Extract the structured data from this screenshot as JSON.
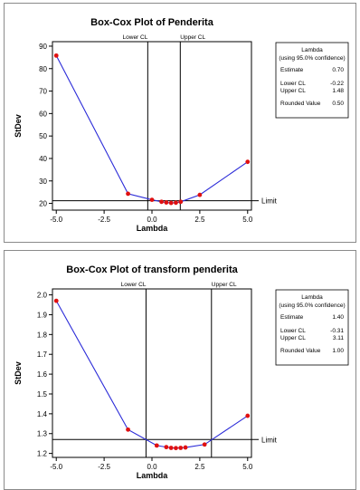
{
  "chart_data": [
    {
      "type": "line",
      "title": "Box-Cox Plot of Penderita",
      "xlabel": "Lambda",
      "ylabel": "StDev",
      "xlim": [
        -5.2,
        5.2
      ],
      "ylim": [
        17,
        92
      ],
      "xticks": [
        -5.0,
        -2.5,
        0.0,
        2.5,
        5.0
      ],
      "xtick_labels": [
        "-5.0",
        "-2.5",
        "0.0",
        "2.5",
        "5.0"
      ],
      "yticks": [
        20,
        30,
        40,
        50,
        60,
        70,
        80,
        90
      ],
      "ytick_labels": [
        "20",
        "30",
        "40",
        "50",
        "60",
        "70",
        "80",
        "90"
      ],
      "x": [
        -5.0,
        -1.25,
        0.0,
        0.5,
        0.75,
        1.0,
        1.25,
        1.5,
        2.5,
        5.0
      ],
      "y": [
        85.8,
        24.3,
        21.6,
        20.7,
        20.4,
        20.2,
        20.3,
        20.7,
        23.8,
        38.5
      ],
      "lower_cl": -0.22,
      "upper_cl": 1.48,
      "limit": 21.2,
      "cl_labels": {
        "lower": "Lower CL",
        "upper": "Upper CL"
      },
      "limit_label": "Limit",
      "legend": {
        "title": "Lambda",
        "subtitle": "(using 95.0% confidence)",
        "rows": [
          {
            "label": "Estimate",
            "value": "0.70"
          },
          {
            "label": "Lower CL",
            "value": "-0.22"
          },
          {
            "label": "Upper CL",
            "value": "1.48"
          },
          {
            "label": "Rounded Value",
            "value": "0.50"
          }
        ]
      },
      "colors": {
        "line": "#2b2bd8",
        "point": "#e01010"
      }
    },
    {
      "type": "line",
      "title": "Box-Cox Plot of transform penderita",
      "xlabel": "Lambda",
      "ylabel": "StDev",
      "xlim": [
        -5.2,
        5.2
      ],
      "ylim": [
        1.18,
        2.03
      ],
      "xticks": [
        -5.0,
        -2.5,
        0.0,
        2.5,
        5.0
      ],
      "xtick_labels": [
        "-5.0",
        "-2.5",
        "0.0",
        "2.5",
        "5.0"
      ],
      "yticks": [
        1.2,
        1.3,
        1.4,
        1.5,
        1.6,
        1.7,
        1.8,
        1.9,
        2.0
      ],
      "ytick_labels": [
        "1.2",
        "1.3",
        "1.4",
        "1.5",
        "1.6",
        "1.7",
        "1.8",
        "1.9",
        "2.0"
      ],
      "x": [
        -5.0,
        -1.25,
        0.25,
        0.75,
        1.0,
        1.25,
        1.5,
        1.75,
        2.75,
        5.0
      ],
      "y": [
        1.97,
        1.32,
        1.24,
        1.232,
        1.228,
        1.227,
        1.228,
        1.23,
        1.245,
        1.39
      ],
      "lower_cl": -0.31,
      "upper_cl": 3.11,
      "limit": 1.27,
      "cl_labels": {
        "lower": "Lower CL",
        "upper": "Upper CL"
      },
      "limit_label": "Limit",
      "legend": {
        "title": "Lambda",
        "subtitle": "(using 95.0% confidence)",
        "rows": [
          {
            "label": "Estimate",
            "value": "1.40"
          },
          {
            "label": "Lower CL",
            "value": "-0.31"
          },
          {
            "label": "Upper CL",
            "value": "3.11"
          },
          {
            "label": "Rounded Value",
            "value": "1.00"
          }
        ]
      },
      "colors": {
        "line": "#2b2bd8",
        "point": "#e01010"
      }
    }
  ]
}
